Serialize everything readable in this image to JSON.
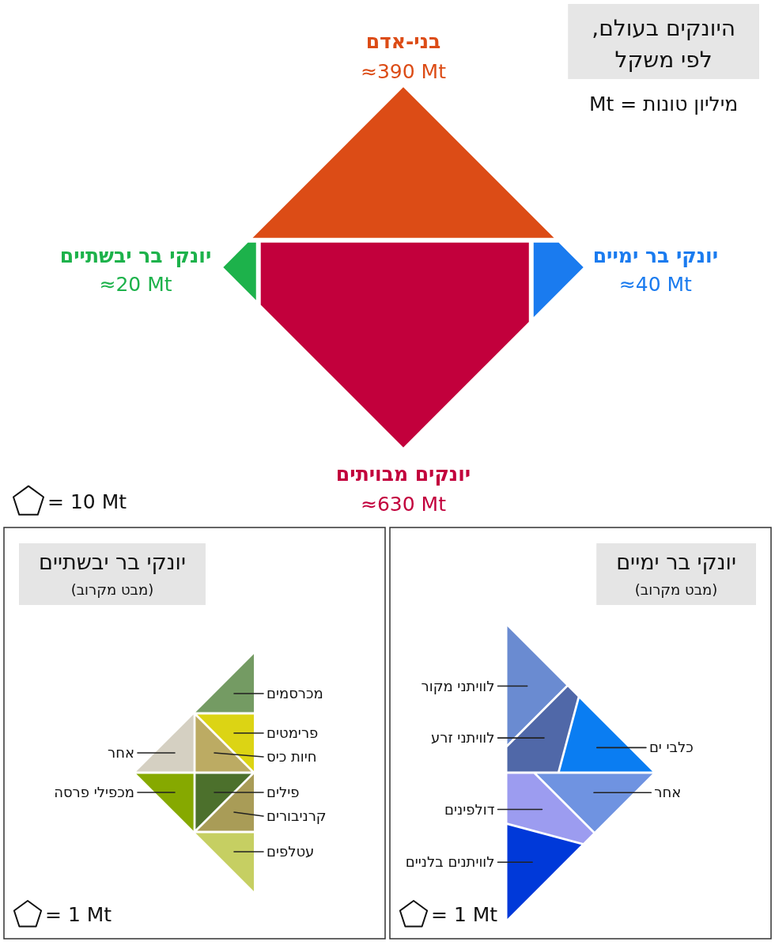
{
  "chart_data": [
    {
      "type": "other",
      "title": "היונקים בעולם, לפי משקל",
      "subtitle": "מיליון טונות = Mt",
      "categories": [
        "בני-אדם",
        "יונקים מבויתים",
        "יונקי בר יבשתיים",
        "יונקי בר ימיים"
      ],
      "values": [
        390,
        630,
        20,
        40
      ],
      "value_labels": [
        "≈390 Mt",
        "≈630 Mt",
        "≈20 Mt",
        "≈40 Mt"
      ],
      "colors": [
        "#dc4c16",
        "#c2003c",
        "#1db24b",
        "#1a7bef"
      ],
      "annotations": [
        "= 10 Mt"
      ]
    },
    {
      "type": "other",
      "title": "יונקי בר יבשתיים",
      "subtitle": "(מבט מקרוב)",
      "categories": [
        "מכרסמים",
        "פרימטים",
        "אחר",
        "חיות כיס",
        "מכפילי פרסה",
        "פילים",
        "קרניבורים",
        "עטלפים"
      ],
      "colors": [
        "#749b63",
        "#dcd414",
        "#d5d0c2",
        "#bcab63",
        "#86a900",
        "#4c702c",
        "#a99c57",
        "#c6cf62"
      ],
      "annotations": [
        "= 1 Mt"
      ]
    },
    {
      "type": "other",
      "title": "יונקי בר ימיים",
      "subtitle": "(מבט מקרוב)",
      "categories": [
        "לוויתני מקור",
        "לוויתני זרע",
        "כלבי ים",
        "אחר",
        "דולפינים",
        "לוויתנים בלניים"
      ],
      "colors": [
        "#6a8bd1",
        "#5068a8",
        "#0a7df2",
        "#6f93e1",
        "#9c9cf0",
        "#0039d9"
      ],
      "annotations": [
        "= 1 Mt"
      ]
    }
  ]
}
